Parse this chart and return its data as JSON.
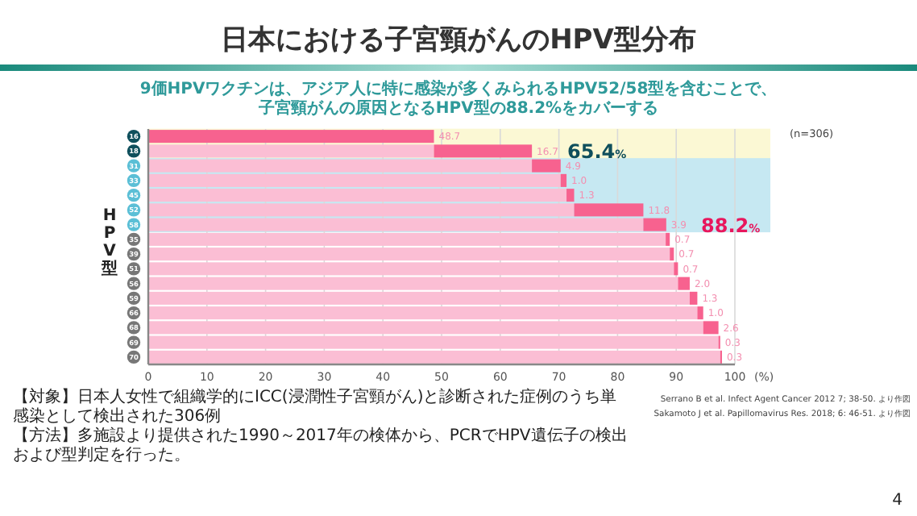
{
  "chart_data": {
    "type": "bar",
    "title": "日本における子宮頸がんのHPV型分布",
    "subtitle": "9価HPVワクチンは、アジア人に特に感染が多くみられるHPV52/58型を含むことで、子宮頸がんの原因となるHPV型の88.2%をカバーする",
    "ylabel": "HPV型",
    "orientation": "horizontal",
    "stacked": true,
    "categories": [
      "16",
      "18",
      "31",
      "33",
      "45",
      "52",
      "58",
      "35",
      "39",
      "51",
      "56",
      "59",
      "66",
      "68",
      "69",
      "70"
    ],
    "series": [
      {
        "color": "#fbbed4",
        "values": [
          0,
          48.7,
          65.4,
          70.3,
          71.3,
          72.6,
          84.4,
          88.2,
          88.9,
          89.6,
          90.3,
          92.3,
          93.6,
          94.6,
          97.2,
          97.5
        ]
      },
      {
        "color": "#f7628f",
        "values": [
          48.7,
          16.7,
          4.9,
          1.0,
          1.3,
          11.8,
          3.9,
          0.7,
          0.7,
          0.7,
          2.0,
          1.3,
          1.0,
          2.6,
          0.3,
          0.3
        ],
        "value_labels": [
          "48.7",
          "16.7",
          "4.9",
          "1.0",
          "1.3",
          "11.8",
          "3.9",
          "0.7",
          "0.7",
          "0.7",
          "2.0",
          "1.3",
          "1.0",
          "2.6",
          "0.3",
          "0.3"
        ]
      }
    ],
    "xlim": [
      0,
      100
    ],
    "xticks": [
      0,
      10,
      20,
      30,
      40,
      50,
      60,
      70,
      80,
      90,
      100
    ],
    "xlabel": "(%)",
    "grid": "x",
    "bands": [
      {
        "axis": "y",
        "from": "16",
        "to": "18",
        "color": "#fbf8d4"
      },
      {
        "axis": "y",
        "from": "31",
        "to": "58",
        "color": "#c6e8f2"
      }
    ],
    "annotations": [
      {
        "text": "65.4%",
        "x": 65.4,
        "y": "18"
      },
      {
        "text": "88.2%",
        "x": 88.2,
        "y": "58"
      },
      "(n=306)",
      "【対象】日本人女性で組織学的にICC(浸潤性子宮頸がん)と診断された症例のうち単感染として検出された306例",
      "【方法】多施設より提供された1990～2017年の検体から、PCRでHPV遺伝子の検出および型判定を行った。",
      "Serrano B et al. Infect Agent Cancer 2012 7; 38-50. より作図",
      "Sakamoto J et al. Papillomavirus Res. 2018; 6: 46-51. より作図",
      "4"
    ]
  }
}
